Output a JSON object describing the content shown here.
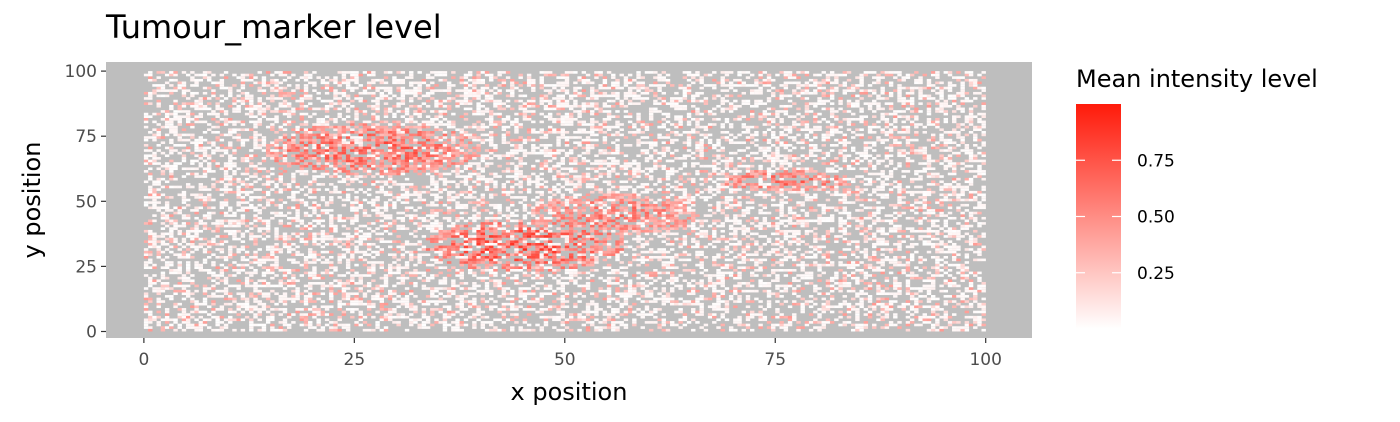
{
  "chart_data": {
    "type": "heatmap",
    "title": "Tumour_marker level",
    "xlabel": "x position",
    "ylabel": "y position",
    "xlim": [
      -4.5,
      105.5
    ],
    "ylim": [
      -2.5,
      103.5
    ],
    "x_ticks": [
      0,
      25,
      50,
      75,
      100
    ],
    "y_ticks": [
      0,
      25,
      50,
      75,
      100
    ],
    "panel_background": "#bebebe",
    "grid": false,
    "legend": {
      "title": "Mean intensity level",
      "position": "right",
      "low_color": "#ffffff",
      "high_color": "#ff1a0a",
      "range": [
        0,
        1
      ],
      "breaks": [
        0.25,
        0.5,
        0.75
      ],
      "break_labels": [
        "0.25",
        "0.50",
        "0.75"
      ]
    },
    "grid_extent": {
      "x": [
        0,
        100
      ],
      "y": [
        0,
        100
      ]
    },
    "hotspots": [
      {
        "x": 27,
        "y": 70,
        "rx": 13,
        "ry": 10,
        "intensity": 0.85
      },
      {
        "x": 45,
        "y": 33,
        "rx": 12,
        "ry": 10,
        "intensity": 0.95
      },
      {
        "x": 56,
        "y": 45,
        "rx": 10,
        "ry": 8,
        "intensity": 0.75
      },
      {
        "x": 76,
        "y": 58,
        "rx": 8,
        "ry": 4,
        "intensity": 0.8
      }
    ]
  }
}
